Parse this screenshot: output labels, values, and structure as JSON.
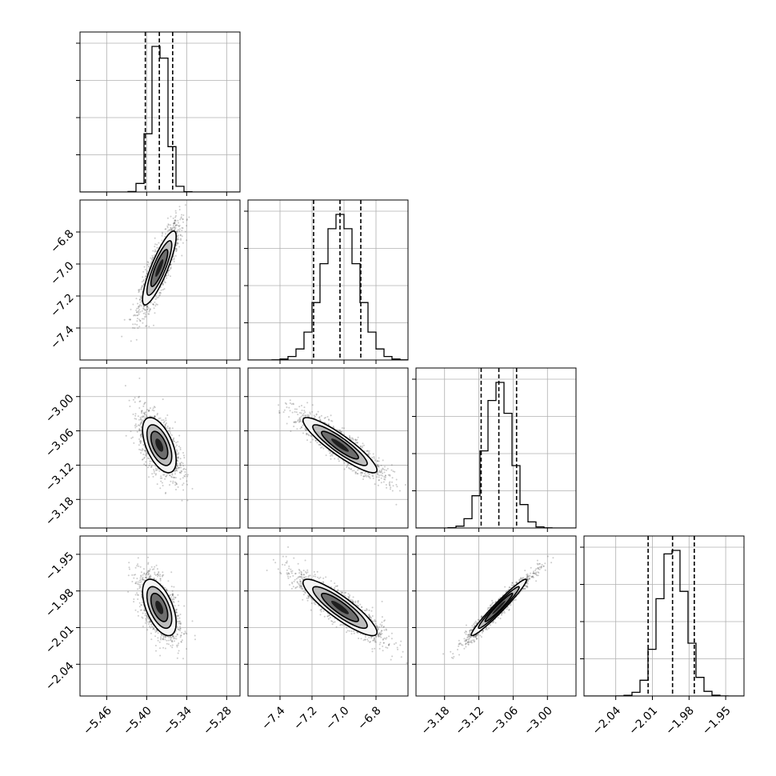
{
  "chart_data": {
    "type": "corner",
    "parameters": [
      {
        "range": [
          -5.5,
          -5.26
        ],
        "ticks": [
          -5.46,
          -5.4,
          -5.34,
          -5.28
        ],
        "tick_labels": [
          "−5.46",
          "−5.40",
          "−5.34",
          "−5.28"
        ],
        "quantiles": [
          -5.402,
          -5.381,
          -5.361
        ],
        "median": -5.381,
        "sd": 0.012
      },
      {
        "range": [
          -7.6,
          -6.6
        ],
        "ticks": [
          -7.4,
          -7.2,
          -7.0,
          -6.8
        ],
        "tick_labels": [
          "−7.4",
          "−7.2",
          "−7.0",
          "−6.8"
        ],
        "quantiles": [
          -7.19,
          -7.025,
          -6.895
        ],
        "median": -7.025,
        "sd": 0.11
      },
      {
        "range": [
          -3.23,
          -2.95
        ],
        "ticks": [
          -3.18,
          -3.12,
          -3.06,
          -3.0
        ],
        "tick_labels": [
          "−3.18",
          "−3.12",
          "−3.06",
          "−3.00"
        ],
        "quantiles": [
          -3.116,
          -3.085,
          -3.054
        ],
        "median": -3.085,
        "sd": 0.023
      },
      {
        "range": [
          -2.066,
          -1.935
        ],
        "ticks": [
          -2.04,
          -2.01,
          -1.98,
          -1.95
        ],
        "tick_labels": [
          "−2.04",
          "−2.01",
          "−1.98",
          "−1.95"
        ],
        "quantiles": [
          -2.0135,
          -1.9935,
          -1.9757
        ],
        "median": -1.9935,
        "sd": 0.011
      }
    ],
    "correlations": {
      "0-1": 0.85,
      "0-2": -0.55,
      "1-2": -0.9,
      "0-3": -0.55,
      "1-3": -0.88,
      "2-3": 0.97
    },
    "histogram_bins": 20,
    "grid": true,
    "colors": {
      "line": "#000000",
      "points": "#555555",
      "grid": "#b0b0b0"
    }
  }
}
